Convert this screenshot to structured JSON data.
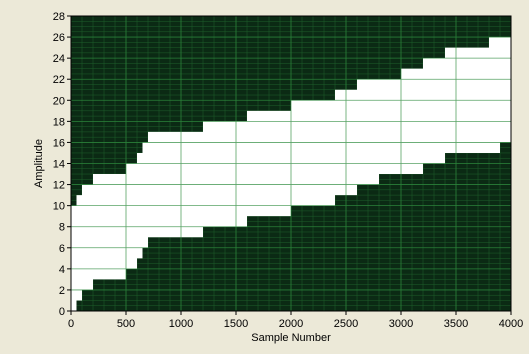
{
  "chart_data": {
    "type": "area",
    "title": "",
    "xlabel": "Sample Number",
    "ylabel": "Amplitude",
    "xlim": [
      0,
      4000
    ],
    "ylim": [
      0,
      28
    ],
    "x_ticks": [
      0,
      500,
      1000,
      1500,
      2000,
      2500,
      3000,
      3500,
      4000
    ],
    "y_ticks": [
      0,
      2,
      4,
      6,
      8,
      10,
      12,
      14,
      16,
      18,
      20,
      22,
      24,
      26,
      28
    ],
    "grid": true,
    "colors": {
      "background": "#0b2a14",
      "fill": "#ffffff",
      "grid": "#2e8b3e",
      "frame": "#ece9d8"
    },
    "series": [
      {
        "role": "lower-envelope",
        "x": [
          0,
          50,
          100,
          200,
          400,
          500,
          600,
          650,
          700,
          900,
          1200,
          1300,
          1400,
          1600,
          1800,
          2000,
          2200,
          2400,
          2600,
          2800,
          3000,
          3200,
          3300,
          3400,
          3600,
          3700,
          3800,
          3900,
          4000
        ],
        "y": [
          0,
          1,
          2,
          3,
          3,
          4,
          5,
          6,
          7,
          7,
          8,
          8,
          8,
          9,
          9,
          10,
          10,
          11,
          12,
          13,
          13,
          14,
          14,
          15,
          15,
          15,
          15,
          16,
          16
        ]
      },
      {
        "role": "upper-envelope",
        "x": [
          0,
          50,
          100,
          200,
          400,
          500,
          600,
          650,
          700,
          900,
          1100,
          1200,
          1300,
          1400,
          1600,
          1800,
          2000,
          2200,
          2400,
          2600,
          2800,
          3000,
          3200,
          3300,
          3400,
          3600,
          3700,
          3800,
          3900,
          4000
        ],
        "y": [
          10,
          11,
          12,
          13,
          13,
          14,
          15,
          16,
          17,
          17,
          17,
          18,
          18,
          18,
          19,
          19,
          20,
          20,
          21,
          22,
          22,
          23,
          24,
          24,
          25,
          25,
          25,
          26,
          26,
          26
        ]
      }
    ]
  }
}
